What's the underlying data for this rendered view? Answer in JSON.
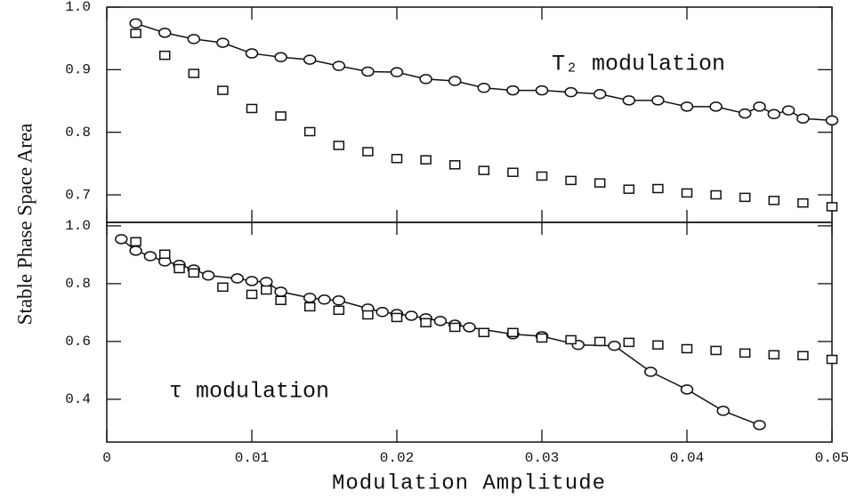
{
  "ylabel": "Stable Phase Space Area",
  "xlabel": "Modulation Amplitude",
  "chart_data": [
    {
      "type": "scatter",
      "annotation": "T₂ modulation",
      "xlim": [
        0,
        0.05
      ],
      "xticks": [
        0,
        0.01,
        0.02,
        0.03,
        0.04,
        0.05
      ],
      "ylim": [
        0.656,
        1.0
      ],
      "yticks": [
        {
          "value": 1.0,
          "label": "1.0"
        },
        0.9,
        0.8,
        0.7
      ],
      "series": [
        {
          "marker": "circle",
          "line": true,
          "color": "#111",
          "x": [
            0.002,
            0.004,
            0.006,
            0.008,
            0.01,
            0.012,
            0.014,
            0.016,
            0.018,
            0.02,
            0.022,
            0.024,
            0.026,
            0.028,
            0.03,
            0.032,
            0.034,
            0.036,
            0.038,
            0.04,
            0.042,
            0.044,
            0.045,
            0.046,
            0.047,
            0.048,
            0.05
          ],
          "values": [
            0.974,
            0.959,
            0.949,
            0.943,
            0.926,
            0.92,
            0.916,
            0.906,
            0.897,
            0.896,
            0.885,
            0.882,
            0.871,
            0.867,
            0.867,
            0.864,
            0.861,
            0.851,
            0.851,
            0.841,
            0.841,
            0.83,
            0.841,
            0.829,
            0.835,
            0.822,
            0.819
          ]
        },
        {
          "marker": "square",
          "line": false,
          "color": "#111",
          "x": [
            0.002,
            0.004,
            0.006,
            0.008,
            0.01,
            0.012,
            0.014,
            0.016,
            0.018,
            0.02,
            0.022,
            0.024,
            0.026,
            0.028,
            0.03,
            0.032,
            0.034,
            0.036,
            0.038,
            0.04,
            0.042,
            0.044,
            0.046,
            0.048,
            0.05
          ],
          "values": [
            0.958,
            0.923,
            0.894,
            0.867,
            0.838,
            0.826,
            0.801,
            0.779,
            0.769,
            0.758,
            0.756,
            0.748,
            0.739,
            0.736,
            0.73,
            0.723,
            0.719,
            0.709,
            0.71,
            0.703,
            0.7,
            0.696,
            0.691,
            0.687,
            0.681
          ]
        }
      ]
    },
    {
      "type": "scatter",
      "annotation": "τ modulation",
      "xlim": [
        0,
        0.05
      ],
      "xticks": [
        0,
        0.01,
        0.02,
        0.03,
        0.04,
        0.05
      ],
      "ylim": [
        0.252,
        1.012
      ],
      "yticks": [
        {
          "value": 1.0,
          "label": "1.0"
        },
        0.8,
        0.6,
        0.4
      ],
      "series": [
        {
          "marker": "circle",
          "line": true,
          "color": "#111",
          "x": [
            0.001,
            0.002,
            0.003,
            0.004,
            0.005,
            0.006,
            0.007,
            0.009,
            0.01,
            0.011,
            0.012,
            0.014,
            0.015,
            0.016,
            0.018,
            0.019,
            0.02,
            0.021,
            0.022,
            0.023,
            0.024,
            0.025,
            0.028,
            0.03,
            0.0325,
            0.035,
            0.0375,
            0.04,
            0.0425,
            0.045
          ],
          "values": [
            0.954,
            0.914,
            0.895,
            0.877,
            0.865,
            0.849,
            0.828,
            0.818,
            0.809,
            0.806,
            0.772,
            0.751,
            0.745,
            0.742,
            0.714,
            0.702,
            0.695,
            0.689,
            0.68,
            0.671,
            0.658,
            0.649,
            0.625,
            0.618,
            0.588,
            0.585,
            0.495,
            0.434,
            0.36,
            0.311
          ]
        },
        {
          "marker": "square",
          "line": false,
          "color": "#111",
          "x": [
            0.002,
            0.004,
            0.005,
            0.006,
            0.008,
            0.01,
            0.011,
            0.012,
            0.014,
            0.016,
            0.018,
            0.02,
            0.022,
            0.024,
            0.026,
            0.028,
            0.03,
            0.032,
            0.034,
            0.036,
            0.038,
            0.04,
            0.042,
            0.044,
            0.046,
            0.048,
            0.05
          ],
          "values": [
            0.945,
            0.902,
            0.852,
            0.837,
            0.788,
            0.763,
            0.778,
            0.742,
            0.72,
            0.708,
            0.692,
            0.683,
            0.665,
            0.649,
            0.631,
            0.631,
            0.612,
            0.606,
            0.6,
            0.597,
            0.588,
            0.575,
            0.569,
            0.56,
            0.554,
            0.551,
            0.538
          ]
        }
      ]
    }
  ]
}
